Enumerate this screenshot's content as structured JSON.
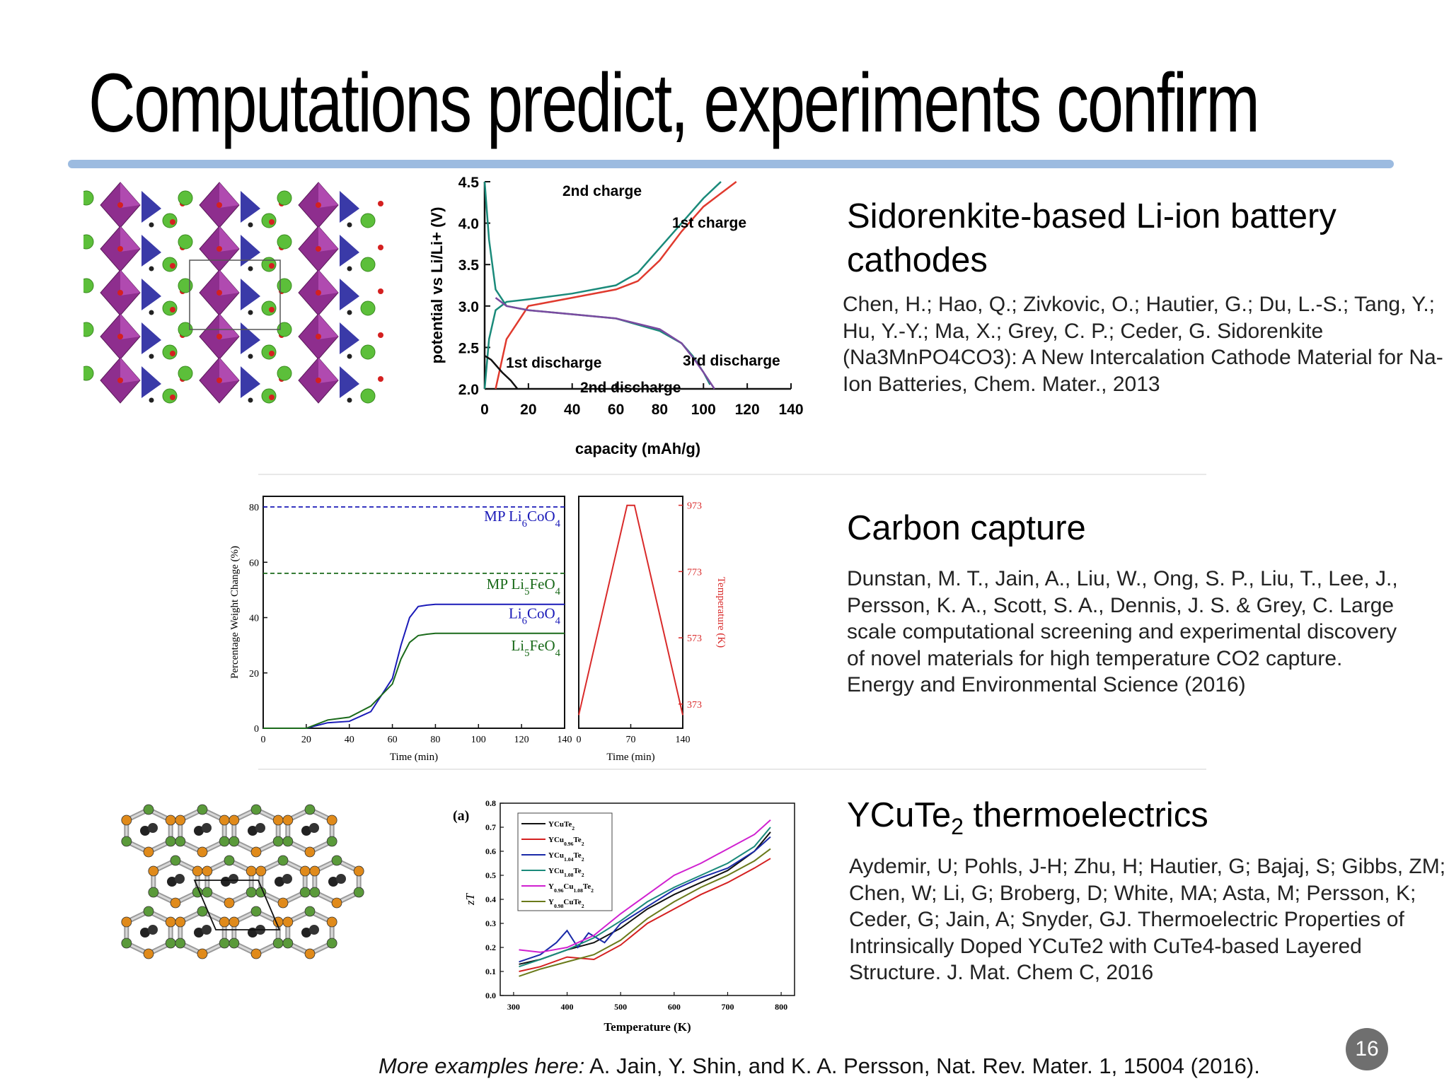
{
  "slide": {
    "title": "Computations predict, experiments confirm",
    "page_number": "16",
    "footer_lead": "More examples here:",
    "footer_ref": " A. Jain, Y. Shin, and K. A. Persson, Nat. Rev. Mater. 1, 15004 (2016).",
    "colors": {
      "rule": "#9cbbe0",
      "page_badge": "#6f6f6f"
    }
  },
  "sections": [
    {
      "heading": "Sidorenkite-based Li-ion battery cathodes",
      "reference": "Chen, H.; Hao, Q.; Zivkovic, O.; Hautier, G.; Du, L.-S.; Tang, Y.; Hu, Y.-Y.; Ma, X.; Grey, C. P.; Ceder, G. Sidorenkite (Na3MnPO4CO3): A New Intercalation Cathode Material for Na-Ion Batteries, Chem. Mater., 2013"
    },
    {
      "heading": "Carbon capture",
      "reference": "Dunstan, M. T., Jain, A., Liu, W., Ong, S. P., Liu, T., Lee, J., Persson, K. A., Scott, S. A., Dennis, J. S. & Grey, C. Large scale computational screening and experimental discovery of novel materials for high temperature CO2 capture. Energy and Environmental Science (2016)"
    },
    {
      "heading_main": "YCuTe",
      "heading_sub": "2",
      "heading_rest": " thermoelectrics",
      "reference": "Aydemir, U; Pohls, J-H; Zhu, H; Hautier, G; Bajaj, S; Gibbs, ZM; Chen, W; Li, G; Broberg, D; White, MA; Asta, M; Persson, K; Ceder, G; Jain, A; Snyder, GJ. Thermoelectric Properties of Intrinsically Doped YCuTe2 with CuTe4-based Layered Structure. J. Mat. Chem C, 2016"
    }
  ],
  "chart_data": [
    {
      "type": "line",
      "xlabel": "capacity (mAh/g)",
      "ylabel": "potential vs Li/Li+ (V)",
      "xlim": [
        0,
        140
      ],
      "ylim": [
        2.0,
        4.5
      ],
      "xticks": [
        "0",
        "20",
        "40",
        "60",
        "80",
        "100",
        "120",
        "140"
      ],
      "yticks": [
        "2.0",
        "2.5",
        "3.0",
        "3.5",
        "4.0",
        "4.5"
      ],
      "annotations": [
        "2nd charge",
        "1st charge",
        "1st discharge",
        "3rd discharge",
        "2nd discharge"
      ],
      "series": [
        {
          "name": "1st charge",
          "color": "#e03a2e",
          "x": [
            5,
            10,
            20,
            40,
            60,
            70,
            80,
            90,
            100,
            110,
            115
          ],
          "y": [
            2.0,
            2.6,
            3.0,
            3.1,
            3.2,
            3.3,
            3.55,
            3.9,
            4.2,
            4.4,
            4.5
          ]
        },
        {
          "name": "2nd charge",
          "color": "#1a8a7a",
          "x": [
            0,
            2,
            5,
            10,
            20,
            40,
            60,
            70,
            80,
            90,
            100,
            108
          ],
          "y": [
            2.0,
            2.6,
            2.95,
            3.05,
            3.08,
            3.15,
            3.25,
            3.4,
            3.7,
            4.0,
            4.3,
            4.5
          ]
        },
        {
          "name": "1st discharge",
          "color": "#111111",
          "x": [
            0,
            3,
            8,
            12,
            15
          ],
          "y": [
            2.4,
            2.35,
            2.2,
            2.1,
            2.0
          ]
        },
        {
          "name": "2nd discharge",
          "color": "#1a8a7a",
          "x": [
            0,
            2,
            5,
            10,
            20,
            40,
            60,
            80,
            90,
            95,
            100,
            103
          ],
          "y": [
            4.5,
            3.8,
            3.2,
            3.0,
            2.95,
            2.9,
            2.85,
            2.7,
            2.55,
            2.4,
            2.2,
            2.05
          ]
        },
        {
          "name": "3rd discharge",
          "color": "#7a4aa0",
          "x": [
            5,
            10,
            20,
            40,
            60,
            80,
            90,
            96,
            100,
            105
          ],
          "y": [
            3.1,
            3.0,
            2.95,
            2.9,
            2.85,
            2.72,
            2.55,
            2.35,
            2.2,
            2.0
          ]
        }
      ]
    },
    {
      "type": "line",
      "xlabel": "Time (min)",
      "ylabel": "Percentage Weight Change (%)",
      "xlim": [
        0,
        140
      ],
      "ylim": [
        0,
        80
      ],
      "xticks": [
        "0",
        "20",
        "40",
        "60",
        "80",
        "100",
        "120",
        "140"
      ],
      "yticks": [
        "0",
        "20",
        "40",
        "60",
        "80"
      ],
      "reference_lines": [
        {
          "name_main": "MP Li",
          "name_sub": "6",
          "name_mid": "CoO",
          "name_sub2": "4",
          "value": 80,
          "color": "#1a1ab8"
        },
        {
          "name_main": "MP Li",
          "name_sub": "5",
          "name_mid": "FeO",
          "name_sub2": "4",
          "value": 56,
          "color": "#1a6a1a"
        }
      ],
      "series": [
        {
          "name_main": "Li",
          "name_sub": "6",
          "name_mid": "CoO",
          "name_sub2": "4",
          "color": "#1a1ab8",
          "x": [
            0,
            20,
            30,
            40,
            50,
            60,
            64,
            68,
            72,
            76,
            80,
            100,
            140
          ],
          "y": [
            0,
            0,
            2,
            2.5,
            6,
            18,
            30,
            40,
            44,
            44.5,
            44.8,
            44.8,
            44.8
          ]
        },
        {
          "name_main": "Li",
          "name_sub": "5",
          "name_mid": "FeO",
          "name_sub2": "4",
          "color": "#1a6a1a",
          "x": [
            0,
            20,
            30,
            40,
            50,
            60,
            64,
            68,
            72,
            76,
            80,
            100,
            140
          ],
          "y": [
            0,
            0,
            3,
            4,
            8,
            16,
            25,
            31,
            33.5,
            34,
            34.3,
            34.3,
            34.3
          ]
        }
      ]
    },
    {
      "type": "line",
      "xlabel": "Time (min)",
      "ylabel": "Temperature (K)",
      "xlim": [
        0,
        140
      ],
      "ylim": [
        300,
        1000
      ],
      "xticks": [
        "0",
        "70",
        "140"
      ],
      "yticks": [
        "373",
        "573",
        "773",
        "973"
      ],
      "series": [
        {
          "name": "",
          "color": "#d92a2a",
          "x": [
            0,
            65,
            75,
            140
          ],
          "y": [
            340,
            973,
            973,
            340
          ]
        }
      ]
    },
    {
      "type": "line",
      "panel_label": "(a)",
      "xlabel": "Temperature (K)",
      "ylabel": "zT",
      "xlim": [
        300,
        800
      ],
      "ylim": [
        0,
        0.8
      ],
      "xticks": [
        "300",
        "400",
        "500",
        "600",
        "700",
        "800"
      ],
      "yticks": [
        "0.0",
        "0.1",
        "0.2",
        "0.3",
        "0.4",
        "0.5",
        "0.6",
        "0.7",
        "0.8"
      ],
      "series": [
        {
          "name_main": "YCuTe",
          "name_sub": "2",
          "color": "#111111",
          "x": [
            310,
            350,
            400,
            450,
            500,
            550,
            600,
            650,
            700,
            750,
            780
          ],
          "y": [
            0.13,
            0.15,
            0.19,
            0.22,
            0.28,
            0.36,
            0.42,
            0.47,
            0.52,
            0.6,
            0.68
          ]
        },
        {
          "name_main": "YCu",
          "name_sub": "0.96",
          "name_mid": "Te",
          "name_sub2": "2",
          "color": "#d42020",
          "x": [
            310,
            350,
            400,
            450,
            500,
            550,
            600,
            650,
            700,
            750,
            780
          ],
          "y": [
            0.1,
            0.12,
            0.16,
            0.15,
            0.21,
            0.3,
            0.36,
            0.42,
            0.47,
            0.53,
            0.57
          ]
        },
        {
          "name_main": "YCu",
          "name_sub": "1.04",
          "name_mid": "Te",
          "name_sub2": "2",
          "color": "#1a2aa8",
          "x": [
            310,
            350,
            380,
            400,
            420,
            440,
            470,
            500,
            550,
            600,
            650,
            700,
            750,
            780
          ],
          "y": [
            0.14,
            0.17,
            0.22,
            0.27,
            0.2,
            0.26,
            0.22,
            0.3,
            0.37,
            0.44,
            0.49,
            0.53,
            0.6,
            0.66
          ]
        },
        {
          "name_main": "YCu",
          "name_sub": "1.08",
          "name_mid": "Te",
          "name_sub2": "2",
          "color": "#1a8a7a",
          "x": [
            310,
            350,
            400,
            450,
            500,
            550,
            600,
            650,
            700,
            750,
            780
          ],
          "y": [
            0.12,
            0.15,
            0.19,
            0.24,
            0.31,
            0.39,
            0.45,
            0.5,
            0.55,
            0.62,
            0.7
          ]
        },
        {
          "name_main": "Y",
          "name_sub": "0.96",
          "name_mid": "Cu",
          "name_sub2": "1.08",
          "name_end": "Te",
          "name_sub3": "2",
          "color": "#d020d0",
          "x": [
            310,
            350,
            400,
            450,
            500,
            550,
            600,
            650,
            700,
            750,
            780
          ],
          "y": [
            0.19,
            0.18,
            0.2,
            0.25,
            0.34,
            0.42,
            0.5,
            0.55,
            0.61,
            0.67,
            0.73
          ]
        },
        {
          "name_main": "Y",
          "name_sub": "0.98",
          "name_mid": "CuTe",
          "name_sub2": "2",
          "color": "#6a7a1a",
          "x": [
            310,
            350,
            400,
            450,
            500,
            550,
            600,
            650,
            700,
            750,
            780
          ],
          "y": [
            0.08,
            0.11,
            0.14,
            0.17,
            0.23,
            0.32,
            0.39,
            0.45,
            0.5,
            0.56,
            0.61
          ]
        }
      ]
    }
  ]
}
